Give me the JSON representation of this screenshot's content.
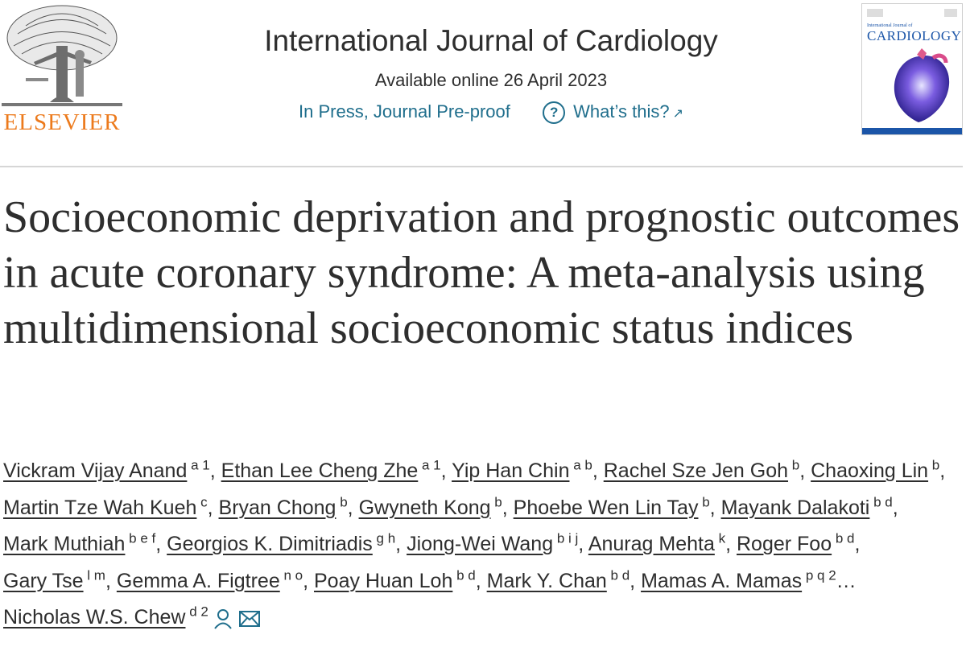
{
  "publisher": {
    "wordmark": "ELSEVIER"
  },
  "journal": {
    "title": "International Journal of Cardiology",
    "available": "Available online 26 April 2023",
    "status": "In Press, Journal Pre-proof",
    "help_label": "What’s this?",
    "help_icon": "question-circle-icon",
    "external_icon": "arrow-up-right-icon"
  },
  "cover": {
    "small_text": "International Journal of",
    "title": "CARDIOLOGY"
  },
  "article": {
    "title": "Socioeconomic deprivation and prognostic outcomes in acute coronary syndrome: A meta-analysis using multidimensional socioeconomic status indices"
  },
  "authors": [
    {
      "name": "Vickram Vijay Anand",
      "aff": "a 1"
    },
    {
      "name": "Ethan Lee Cheng Zhe",
      "aff": "a 1"
    },
    {
      "name": "Yip Han Chin",
      "aff": "a b"
    },
    {
      "name": "Rachel Sze Jen Goh",
      "aff": "b"
    },
    {
      "name": "Chaoxing Lin",
      "aff": "b"
    },
    {
      "name": "Martin Tze Wah Kueh",
      "aff": "c"
    },
    {
      "name": "Bryan Chong",
      "aff": "b"
    },
    {
      "name": "Gwyneth Kong",
      "aff": "b"
    },
    {
      "name": "Phoebe Wen Lin Tay",
      "aff": "b"
    },
    {
      "name": "Mayank Dalakoti",
      "aff": "b d"
    },
    {
      "name": "Mark Muthiah",
      "aff": "b e f"
    },
    {
      "name": "Georgios K. Dimitriadis",
      "aff": "g h"
    },
    {
      "name": "Jiong-Wei Wang",
      "aff": "b i j"
    },
    {
      "name": "Anurag Mehta",
      "aff": "k"
    },
    {
      "name": "Roger Foo",
      "aff": "b d"
    },
    {
      "name": "Gary Tse",
      "aff": "l m"
    },
    {
      "name": "Gemma A. Figtree",
      "aff": "n o"
    },
    {
      "name": "Poay Huan Loh",
      "aff": "b d"
    },
    {
      "name": "Mark Y. Chan",
      "aff": "b d"
    },
    {
      "name": "Mamas A. Mamas",
      "aff": "p q 2"
    },
    {
      "name": "Nicholas W.S. Chew",
      "aff": "d 2"
    }
  ],
  "authors_ellipsis": "…",
  "corresponding_icons": [
    "person-icon",
    "envelope-icon"
  ],
  "colors": {
    "link": "#1f6e8c",
    "elsevier_orange": "#ec7a1c",
    "text": "#2e2e2e"
  }
}
